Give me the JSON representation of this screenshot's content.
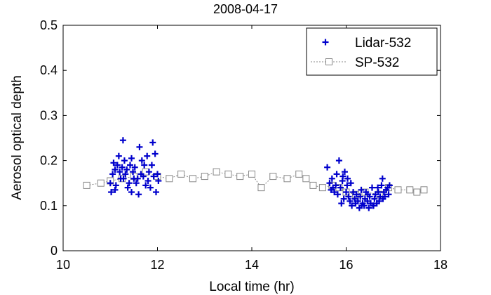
{
  "chart_data": {
    "type": "scatter",
    "title": "2008-04-17",
    "xlabel": "Local time (hr)",
    "ylabel": "Aerosol optical depth",
    "xlim": [
      10,
      18
    ],
    "ylim": [
      0,
      0.5
    ],
    "x_ticks": [
      "10",
      "12",
      "14",
      "16",
      "18"
    ],
    "y_ticks": [
      "0",
      "0.1",
      "0.2",
      "0.3",
      "0.4",
      "0.5"
    ],
    "grid": false,
    "legend_position": "top-right",
    "series": [
      {
        "name": "Lidar-532",
        "marker": "plus",
        "line": "none",
        "color": "#0000cc",
        "points": [
          [
            11.0,
            0.15
          ],
          [
            11.02,
            0.13
          ],
          [
            11.05,
            0.17
          ],
          [
            11.07,
            0.195
          ],
          [
            11.1,
            0.18
          ],
          [
            11.12,
            0.145
          ],
          [
            11.15,
            0.19
          ],
          [
            11.18,
            0.21
          ],
          [
            11.2,
            0.175
          ],
          [
            11.22,
            0.16
          ],
          [
            11.25,
            0.185
          ],
          [
            11.27,
            0.245
          ],
          [
            11.3,
            0.2
          ],
          [
            11.32,
            0.17
          ],
          [
            11.35,
            0.18
          ],
          [
            11.37,
            0.14
          ],
          [
            11.4,
            0.15
          ],
          [
            11.42,
            0.19
          ],
          [
            11.45,
            0.205
          ],
          [
            11.48,
            0.175
          ],
          [
            11.5,
            0.16
          ],
          [
            11.52,
            0.185
          ],
          [
            11.55,
            0.15
          ],
          [
            11.6,
            0.125
          ],
          [
            11.62,
            0.23
          ],
          [
            11.65,
            0.17
          ],
          [
            11.7,
            0.165
          ],
          [
            11.72,
            0.19
          ],
          [
            11.75,
            0.145
          ],
          [
            11.78,
            0.21
          ],
          [
            11.8,
            0.155
          ],
          [
            11.82,
            0.175
          ],
          [
            11.85,
            0.14
          ],
          [
            11.88,
            0.19
          ],
          [
            11.9,
            0.24
          ],
          [
            11.92,
            0.165
          ],
          [
            11.95,
            0.215
          ],
          [
            11.97,
            0.13
          ],
          [
            12.0,
            0.17
          ],
          [
            12.02,
            0.155
          ],
          [
            11.45,
            0.13
          ],
          [
            11.28,
            0.16
          ],
          [
            11.1,
            0.135
          ],
          [
            11.67,
            0.2
          ],
          [
            11.58,
            0.16
          ],
          [
            15.6,
            0.185
          ],
          [
            15.65,
            0.15
          ],
          [
            15.68,
            0.135
          ],
          [
            15.7,
            0.16
          ],
          [
            15.72,
            0.14
          ],
          [
            15.75,
            0.13
          ],
          [
            15.78,
            0.145
          ],
          [
            15.8,
            0.17
          ],
          [
            15.82,
            0.125
          ],
          [
            15.85,
            0.2
          ],
          [
            15.88,
            0.14
          ],
          [
            15.9,
            0.105
          ],
          [
            15.92,
            0.155
          ],
          [
            15.95,
            0.115
          ],
          [
            15.97,
            0.175
          ],
          [
            16.0,
            0.13
          ],
          [
            16.02,
            0.145
          ],
          [
            16.05,
            0.12
          ],
          [
            16.08,
            0.11
          ],
          [
            16.1,
            0.15
          ],
          [
            16.12,
            0.1
          ],
          [
            16.15,
            0.13
          ],
          [
            16.18,
            0.115
          ],
          [
            16.2,
            0.105
          ],
          [
            16.22,
            0.125
          ],
          [
            16.25,
            0.11
          ],
          [
            16.28,
            0.095
          ],
          [
            16.3,
            0.12
          ],
          [
            16.32,
            0.135
          ],
          [
            16.35,
            0.105
          ],
          [
            16.38,
            0.1
          ],
          [
            16.4,
            0.115
          ],
          [
            16.42,
            0.13
          ],
          [
            16.45,
            0.11
          ],
          [
            16.48,
            0.095
          ],
          [
            16.5,
            0.12
          ],
          [
            16.52,
            0.105
          ],
          [
            16.55,
            0.14
          ],
          [
            16.58,
            0.1
          ],
          [
            16.6,
            0.115
          ],
          [
            16.62,
            0.125
          ],
          [
            16.65,
            0.105
          ],
          [
            16.68,
            0.13
          ],
          [
            16.7,
            0.11
          ],
          [
            16.72,
            0.12
          ],
          [
            16.75,
            0.145
          ],
          [
            16.78,
            0.115
          ],
          [
            16.8,
            0.13
          ],
          [
            16.82,
            0.12
          ],
          [
            16.85,
            0.135
          ],
          [
            16.88,
            0.14
          ],
          [
            16.9,
            0.125
          ],
          [
            16.92,
            0.145
          ],
          [
            16.77,
            0.16
          ],
          [
            16.03,
            0.16
          ],
          [
            15.93,
            0.165
          ],
          [
            16.33,
            0.1
          ],
          [
            16.46,
            0.125
          ],
          [
            16.57,
            0.1
          ],
          [
            16.67,
            0.14
          ]
        ]
      },
      {
        "name": "SP-532",
        "marker": "square",
        "line": "dotted",
        "color": "#888888",
        "points": [
          [
            10.5,
            0.145
          ],
          [
            10.8,
            0.15
          ],
          [
            11.0,
            0.155
          ],
          [
            11.25,
            0.16
          ],
          [
            11.5,
            0.165
          ],
          [
            11.75,
            0.175
          ],
          [
            12.0,
            0.165
          ],
          [
            12.25,
            0.16
          ],
          [
            12.5,
            0.17
          ],
          [
            12.75,
            0.16
          ],
          [
            13.0,
            0.165
          ],
          [
            13.25,
            0.175
          ],
          [
            13.5,
            0.17
          ],
          [
            13.75,
            0.165
          ],
          [
            14.0,
            0.17
          ],
          [
            14.2,
            0.14
          ],
          [
            14.45,
            0.165
          ],
          [
            14.75,
            0.16
          ],
          [
            15.0,
            0.17
          ],
          [
            15.15,
            0.16
          ],
          [
            15.3,
            0.145
          ],
          [
            15.5,
            0.14
          ],
          [
            15.7,
            0.145
          ],
          [
            15.85,
            0.14
          ],
          [
            16.0,
            0.13
          ],
          [
            16.2,
            0.125
          ],
          [
            16.4,
            0.13
          ],
          [
            16.7,
            0.125
          ],
          [
            16.9,
            0.14
          ],
          [
            17.1,
            0.135
          ],
          [
            17.35,
            0.135
          ],
          [
            17.5,
            0.13
          ],
          [
            17.65,
            0.135
          ]
        ]
      }
    ]
  }
}
